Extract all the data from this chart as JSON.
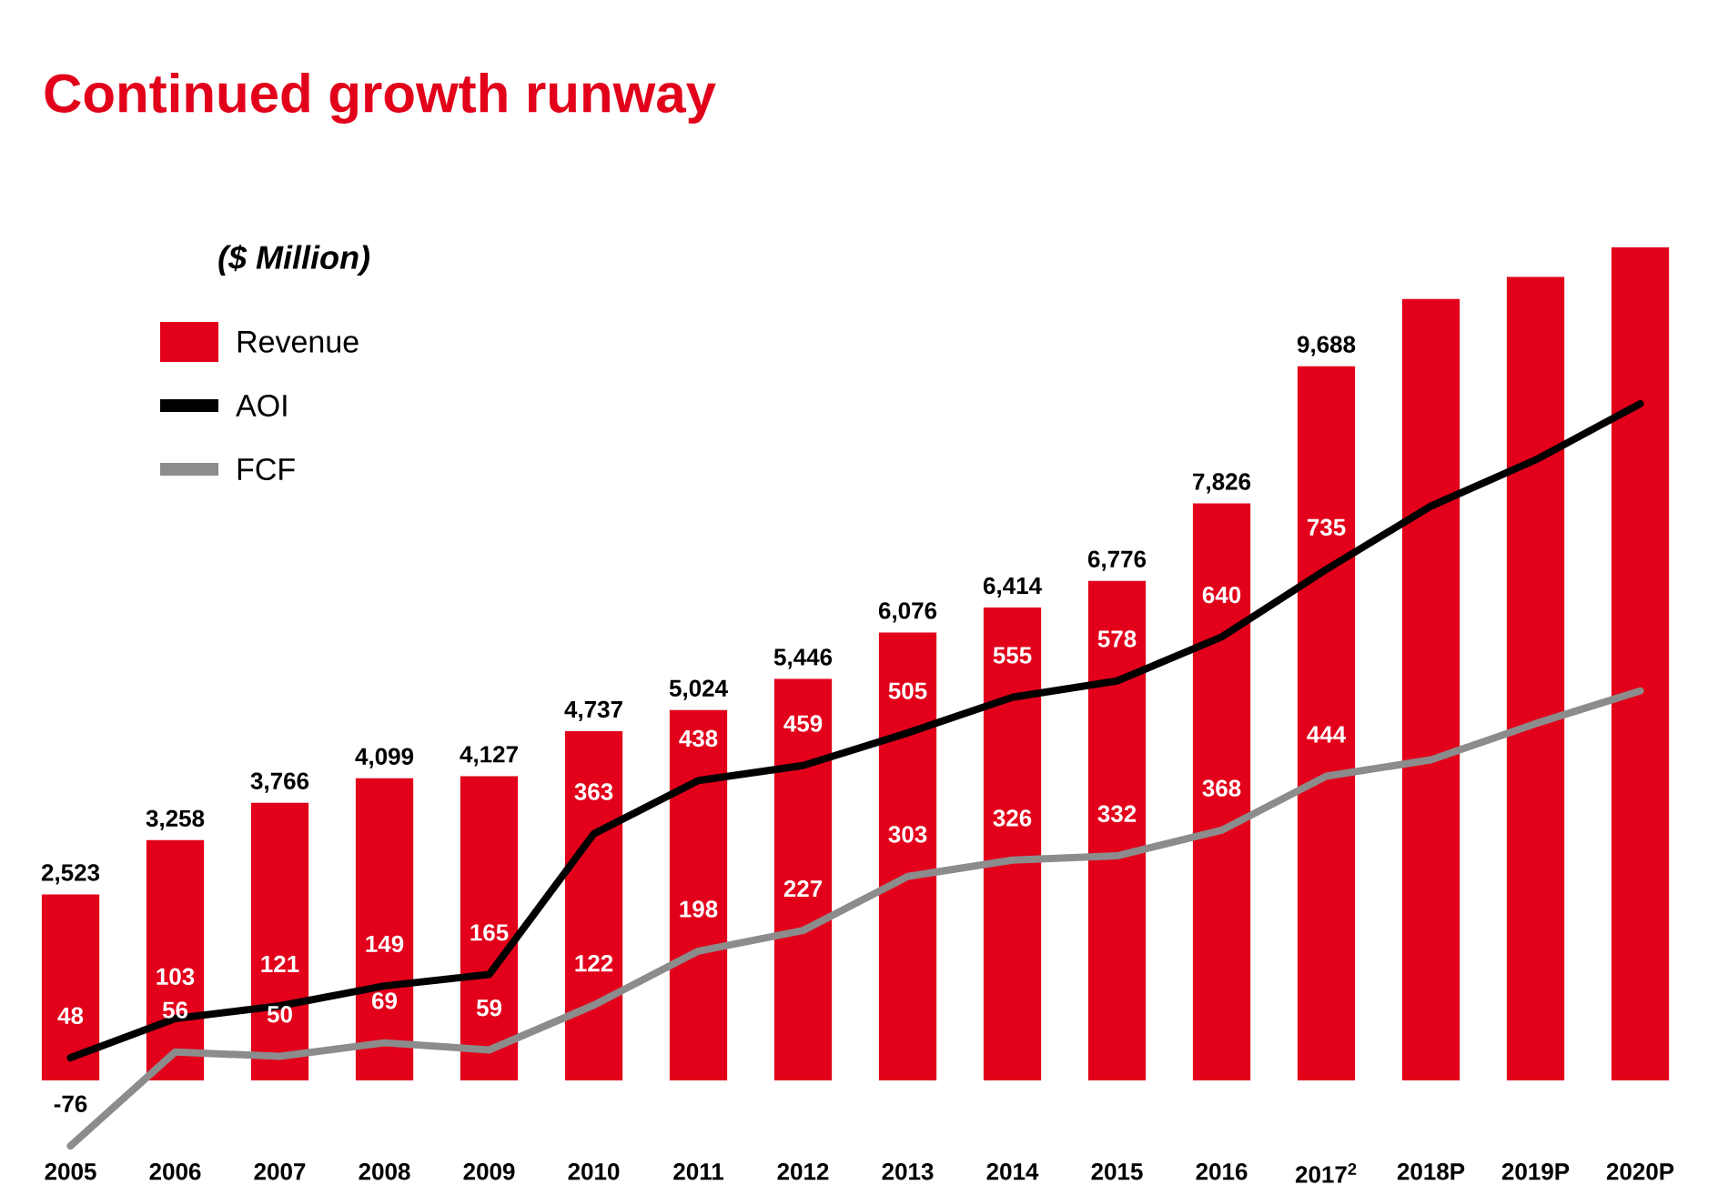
{
  "chart_data": {
    "type": "bar",
    "title": "Continued growth runway",
    "legend_title": "($ Million)",
    "legend": "top left",
    "categories": [
      "2005",
      "2006",
      "2007",
      "2008",
      "2009",
      "2010",
      "2011",
      "2012",
      "2013",
      "2014",
      "2015",
      "2016",
      "2017$^{2}$",
      "2018P",
      "2019P",
      "2020P"
    ],
    "series": [
      {
        "name": "Revenue",
        "color": "#e2001a",
        "values": [
          2523,
          3258,
          3766,
          4099,
          4127,
          4737,
          5024,
          5446,
          6076,
          6414,
          6776,
          7826,
          9688,
          10600,
          10900,
          11300
        ],
        "value_labels": [
          "2,523",
          "3,258",
          "3,766",
          "4,099",
          "4,127",
          "4,737",
          "5,024",
          "5,446",
          "6,076",
          "6,414",
          "6,776",
          "7,826",
          "9,688",
          null,
          null,
          null
        ]
      },
      {
        "name": "AOI",
        "type": "line",
        "axis": "y2",
        "color": "#000000",
        "values": [
          48,
          103,
          121,
          149,
          165,
          363,
          438,
          459,
          505,
          555,
          578,
          640,
          735,
          824,
          889,
          968
        ],
        "value_labels": [
          "48",
          "103",
          "121",
          "149",
          "165",
          "363",
          "438",
          "459",
          "505",
          "555",
          "578",
          "640",
          "735",
          null,
          null,
          null
        ]
      },
      {
        "name": "FCF",
        "type": "line",
        "axis": "y2",
        "color": "#8c8c8c",
        "values": [
          -76,
          56,
          50,
          69,
          59,
          122,
          198,
          227,
          303,
          326,
          332,
          368,
          444,
          467,
          518,
          564
        ],
        "value_labels": [
          "-76",
          "56",
          "50",
          "69",
          "59",
          "122",
          "198",
          "227",
          "303",
          "326",
          "332",
          "368",
          "444",
          null,
          null,
          null
        ]
      }
    ]
  }
}
